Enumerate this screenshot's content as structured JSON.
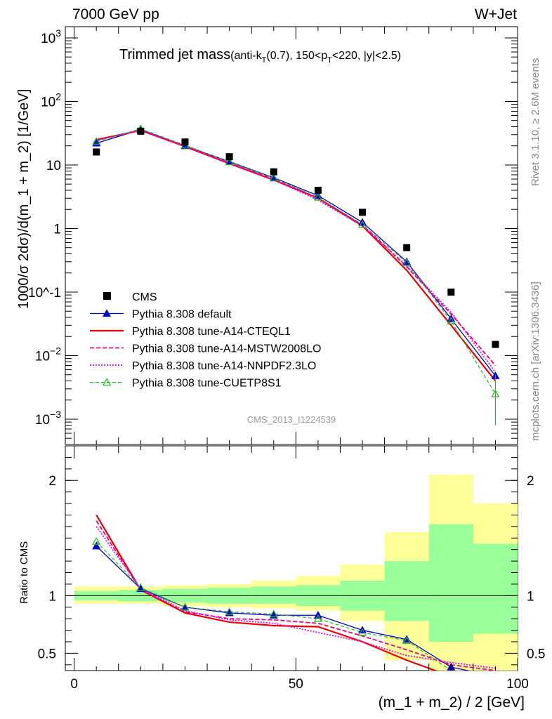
{
  "header": {
    "energy_label": "7000 GeV pp",
    "process_label": "W+Jet",
    "right_top": "Rivet 3.1.10, ≥ 2.6M events",
    "right_bottom": "mcplots.cern.ch [arXiv:1306.3436]",
    "analysis_id": "CMS_2013_I1224539"
  },
  "plot_title": {
    "main": "Trimmed jet mass",
    "sub": "(anti-k",
    "sub_T1": "T",
    "sub_mid": "(0.7), 150<p",
    "sub_T2": "T",
    "sub_end": "<220, |y|<2.5)"
  },
  "axes": {
    "ylabel_top": "1000/σ 2dσ)/d(m_1 + m_2) [1/GeV]",
    "ylabel_bottom": "Ratio to CMS",
    "xlabel": "(m_1 + m_2) / 2 [GeV]"
  },
  "legend": [
    {
      "label": "CMS",
      "color": "#000000",
      "style": "square"
    },
    {
      "label": "Pythia 8.308 default",
      "color": "#0000cc",
      "style": "solid-tri"
    },
    {
      "label": "Pythia 8.308 tune-A14-CTEQL1",
      "color": "#ee0000",
      "style": "solid-thick"
    },
    {
      "label": "Pythia 8.308 tune-A14-MSTW2008LO",
      "color": "#ee0077",
      "style": "dashed"
    },
    {
      "label": "Pythia 8.308 tune-A14-NNPDF2.3LO",
      "color": "#ee00ee",
      "style": "dotted"
    },
    {
      "label": "Pythia 8.308 tune-CUETP8S1",
      "color": "#22bb22",
      "style": "dashed-opentri"
    }
  ],
  "chart_data": [
    {
      "type": "line",
      "name": "main",
      "x": [
        5,
        15,
        25,
        35,
        45,
        55,
        65,
        75,
        85,
        95
      ],
      "xlim": [
        -2,
        100
      ],
      "ylim": [
        0.0004,
        1500
      ],
      "yscale": "log",
      "ytick_labels": [
        "10^-3",
        "10^-2",
        "10^-1",
        "1",
        "10",
        "10^2",
        "10^3"
      ],
      "cms": [
        16,
        34,
        23,
        13.5,
        7.8,
        4.0,
        1.8,
        0.5,
        0.1,
        0.015
      ],
      "series": [
        {
          "name": "Pythia 8.308 default",
          "values": [
            22,
            36,
            20,
            11.3,
            6.3,
            3.3,
            1.25,
            0.3,
            0.038,
            0.0048
          ]
        },
        {
          "name": "Pythia 8.308 tune-A14-CTEQL1",
          "values": [
            25,
            35,
            19.5,
            10.5,
            5.8,
            3.0,
            1.1,
            0.22,
            0.03,
            0.004
          ]
        },
        {
          "name": "Pythia 8.308 tune-A14-MSTW2008LO",
          "values": [
            24.5,
            35,
            19.7,
            10.8,
            6.0,
            3.0,
            1.15,
            0.25,
            0.045,
            0.007
          ]
        },
        {
          "name": "Pythia 8.308 tune-A14-NNPDF2.3LO",
          "values": [
            24,
            35.5,
            19.8,
            10.7,
            5.9,
            2.8,
            1.1,
            0.26,
            0.048,
            0.0055
          ]
        },
        {
          "name": "Pythia 8.308 tune-CUETP8S1",
          "values": [
            23.5,
            37,
            20.5,
            11.2,
            6.2,
            3.1,
            1.15,
            0.29,
            0.035,
            0.0025
          ]
        }
      ]
    },
    {
      "type": "line",
      "name": "ratio",
      "x": [
        5,
        15,
        25,
        35,
        45,
        55,
        65,
        75,
        85,
        95
      ],
      "xlim": [
        -2,
        100
      ],
      "ylim": [
        0.35,
        2.3
      ],
      "xtick_labels": [
        "0",
        "50",
        "100"
      ],
      "ytick_labels": [
        "0.5",
        "1",
        "2"
      ],
      "band_edges": [
        0,
        10,
        20,
        30,
        40,
        50,
        60,
        70,
        80,
        90,
        100
      ],
      "band_inner": [
        [
          0.96,
          1.04
        ],
        [
          0.95,
          1.05
        ],
        [
          0.94,
          1.06
        ],
        [
          0.93,
          1.07
        ],
        [
          0.93,
          1.08
        ],
        [
          0.91,
          1.09
        ],
        [
          0.87,
          1.13
        ],
        [
          0.78,
          1.3
        ],
        [
          0.6,
          1.62
        ],
        [
          0.67,
          1.45
        ]
      ],
      "band_outer": [
        [
          0.93,
          1.08
        ],
        [
          0.93,
          1.08
        ],
        [
          0.91,
          1.09
        ],
        [
          0.9,
          1.1
        ],
        [
          0.89,
          1.13
        ],
        [
          0.87,
          1.17
        ],
        [
          0.78,
          1.27
        ],
        [
          0.44,
          1.55
        ],
        [
          0.3,
          2.05
        ],
        [
          0.3,
          1.8
        ]
      ],
      "series": [
        {
          "name": "Pythia 8.308 default",
          "values": [
            1.43,
            1.06,
            0.9,
            0.85,
            0.83,
            0.83,
            0.7,
            0.62,
            0.38,
            0.3
          ]
        },
        {
          "name": "Pythia 8.308 tune-A14-CTEQL1",
          "values": [
            1.7,
            1.05,
            0.85,
            0.77,
            0.74,
            0.73,
            0.6,
            0.44,
            0.3,
            0.27
          ]
        },
        {
          "name": "Pythia 8.308 tune-A14-MSTW2008LO",
          "values": [
            1.65,
            1.05,
            0.86,
            0.8,
            0.79,
            0.76,
            0.65,
            0.53,
            0.4,
            0.35
          ]
        },
        {
          "name": "Pythia 8.308 tune-A14-NNPDF2.3LO",
          "values": [
            1.6,
            1.06,
            0.87,
            0.79,
            0.76,
            0.68,
            0.6,
            0.48,
            0.42,
            0.37
          ]
        },
        {
          "name": "Pythia 8.308 tune-CUETP8S1",
          "values": [
            1.47,
            1.07,
            0.9,
            0.86,
            0.84,
            0.8,
            0.68,
            0.61,
            0.35,
            0.2
          ]
        }
      ]
    }
  ]
}
